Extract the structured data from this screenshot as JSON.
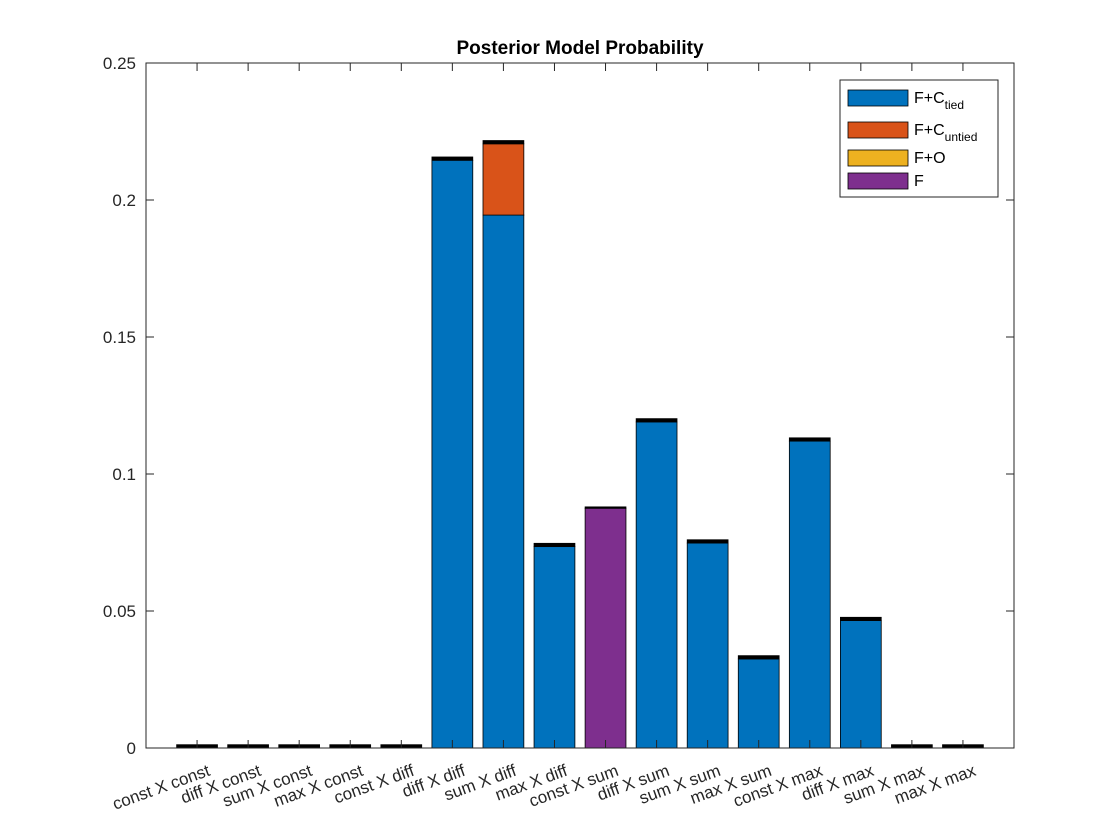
{
  "chart_data": {
    "type": "bar",
    "stacked": true,
    "title": "Posterior Model Probability",
    "xlabel": "",
    "ylabel": "",
    "ylim": [
      0,
      0.25
    ],
    "yticks": [
      0,
      0.05,
      0.1,
      0.15,
      0.2,
      0.25
    ],
    "ytick_labels": [
      "0",
      "0.05",
      "0.1",
      "0.15",
      "0.2",
      "0.25"
    ],
    "categories": [
      "const X const",
      "diff X const",
      "sum X const",
      "max X const",
      "const X diff",
      "diff X diff",
      "sum X diff",
      "max X diff",
      "const X sum",
      "diff X sum",
      "sum X sum",
      "max X sum",
      "const X max",
      "diff X max",
      "sum X max",
      "max X max"
    ],
    "series": [
      {
        "name": "F+C_tied",
        "label_main": "F+C",
        "label_sub": "tied",
        "color": "#0072BD",
        "values": [
          0,
          0,
          0,
          0,
          0,
          0.2145,
          0.1945,
          0.0735,
          0,
          0.119,
          0.0748,
          0.0325,
          0.112,
          0.0465,
          0,
          0
        ]
      },
      {
        "name": "F+C_untied",
        "label_main": "F+C",
        "label_sub": "untied",
        "color": "#D95319",
        "values": [
          0,
          0,
          0,
          0,
          0,
          0,
          0.026,
          0,
          0,
          0,
          0,
          0,
          0,
          0,
          0,
          0
        ]
      },
      {
        "name": "F+O",
        "label_main": "F+O",
        "label_sub": "",
        "color": "#EDB120",
        "values": [
          0,
          0,
          0,
          0,
          0,
          0,
          0,
          0,
          0,
          0,
          0,
          0,
          0,
          0,
          0,
          0
        ]
      },
      {
        "name": "F",
        "label_main": "F",
        "label_sub": "",
        "color": "#7E2F8E",
        "values": [
          0,
          0,
          0,
          0,
          0,
          0,
          0,
          0,
          0.0875,
          0,
          0,
          0,
          0,
          0,
          0,
          0
        ]
      },
      {
        "name": "",
        "legend": false,
        "color": "#000000",
        "values": [
          0.0012,
          0.0012,
          0.0012,
          0.0012,
          0.0012,
          0.0012,
          0.0012,
          0.0012,
          0.0005,
          0.0012,
          0.0012,
          0.0012,
          0.0012,
          0.0012,
          0.0012,
          0.0012
        ]
      }
    ],
    "grid": false,
    "legend_position": "top-right"
  }
}
